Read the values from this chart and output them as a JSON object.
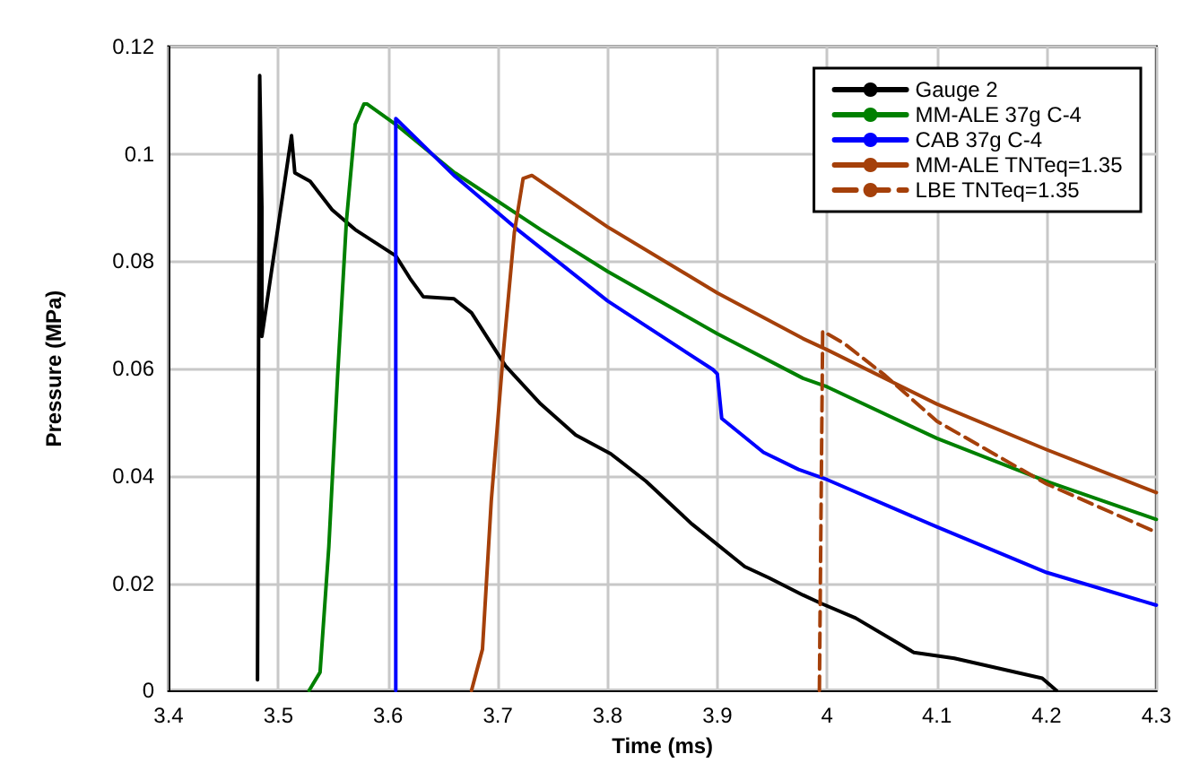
{
  "chart_data": {
    "type": "line",
    "xlabel": "Time (ms)",
    "ylabel": "Pressure (MPa)",
    "xlim": [
      3.4,
      4.3
    ],
    "xticks": [
      3.4,
      3.5,
      3.6,
      3.7,
      3.8,
      3.9,
      4,
      4.1,
      4.2,
      4.3
    ],
    "ylim": [
      0,
      0.12
    ],
    "yticks": [
      0,
      0.02,
      0.04,
      0.06,
      0.08,
      0.1,
      0.12
    ],
    "grid": true,
    "legend": "top right",
    "marker": "none",
    "series": [
      {
        "name": "Gauge 2",
        "color": "#000000",
        "line_style": "solid",
        "x": [
          3.481,
          3.482,
          3.483,
          3.485,
          3.485,
          3.484,
          3.512,
          3.515,
          3.529,
          3.549,
          3.57,
          3.607,
          3.62,
          3.632,
          3.66,
          3.676,
          3.707,
          3.739,
          3.771,
          3.803,
          3.835,
          3.877,
          3.925,
          3.947,
          3.978,
          3.995,
          4.026,
          4.079,
          4.116,
          4.196,
          4.209
        ],
        "values": [
          0.002,
          0.065,
          0.1146,
          0.09,
          0.066,
          0.066,
          0.1034,
          0.0965,
          0.0949,
          0.0896,
          0.0859,
          0.081,
          0.0768,
          0.0734,
          0.073,
          0.0704,
          0.0605,
          0.0534,
          0.0476,
          0.0441,
          0.039,
          0.031,
          0.0231,
          0.021,
          0.0178,
          0.0162,
          0.0135,
          0.0071,
          0.006,
          0.0023,
          0
        ]
      },
      {
        "name": "MM-ALE 37g C-4",
        "color": "#008000",
        "line_style": "solid",
        "x": [
          3.528,
          3.538,
          3.546,
          3.554,
          3.562,
          3.57,
          3.578,
          3.581,
          3.607,
          3.66,
          3.739,
          3.8,
          3.9,
          3.978,
          4.0,
          4.1,
          4.2,
          4.3
        ],
        "values": [
          0,
          0.0034,
          0.0268,
          0.0587,
          0.0874,
          0.1055,
          0.1093,
          0.1093,
          0.1055,
          0.0966,
          0.0859,
          0.0781,
          0.0665,
          0.0582,
          0.0566,
          0.047,
          0.039,
          0.0319
        ]
      },
      {
        "name": "CAB 37g C-4",
        "color": "#0000ff",
        "line_style": "solid",
        "x": [
          3.607,
          3.607,
          3.66,
          3.718,
          3.8,
          3.896,
          3.9,
          3.904,
          3.942,
          3.974,
          4.0,
          4.1,
          4.2,
          4.3
        ],
        "values": [
          0,
          0.1066,
          0.096,
          0.0859,
          0.0726,
          0.0598,
          0.059,
          0.0507,
          0.0444,
          0.0412,
          0.0393,
          0.0305,
          0.022,
          0.0159
        ]
      },
      {
        "name": "MM-ALE TNTeq=1.35",
        "color": "#a5400a",
        "line_style": "solid",
        "x": [
          3.676,
          3.686,
          3.694,
          3.705,
          3.715,
          3.723,
          3.731,
          3.8,
          3.9,
          3.978,
          4.0,
          4.1,
          4.2,
          4.3
        ],
        "values": [
          0,
          0.0077,
          0.0353,
          0.063,
          0.0853,
          0.0954,
          0.096,
          0.0864,
          0.0741,
          0.0656,
          0.0635,
          0.0534,
          0.0449,
          0.0369
        ]
      },
      {
        "name": "LBE TNTeq=1.35",
        "color": "#a5400a",
        "line_style": "dashed",
        "x": [
          3.993,
          3.996,
          4.016,
          4.053,
          4.1,
          4.2,
          4.3
        ],
        "values": [
          0,
          0.067,
          0.0646,
          0.0587,
          0.0502,
          0.0385,
          0.0295
        ]
      }
    ]
  }
}
